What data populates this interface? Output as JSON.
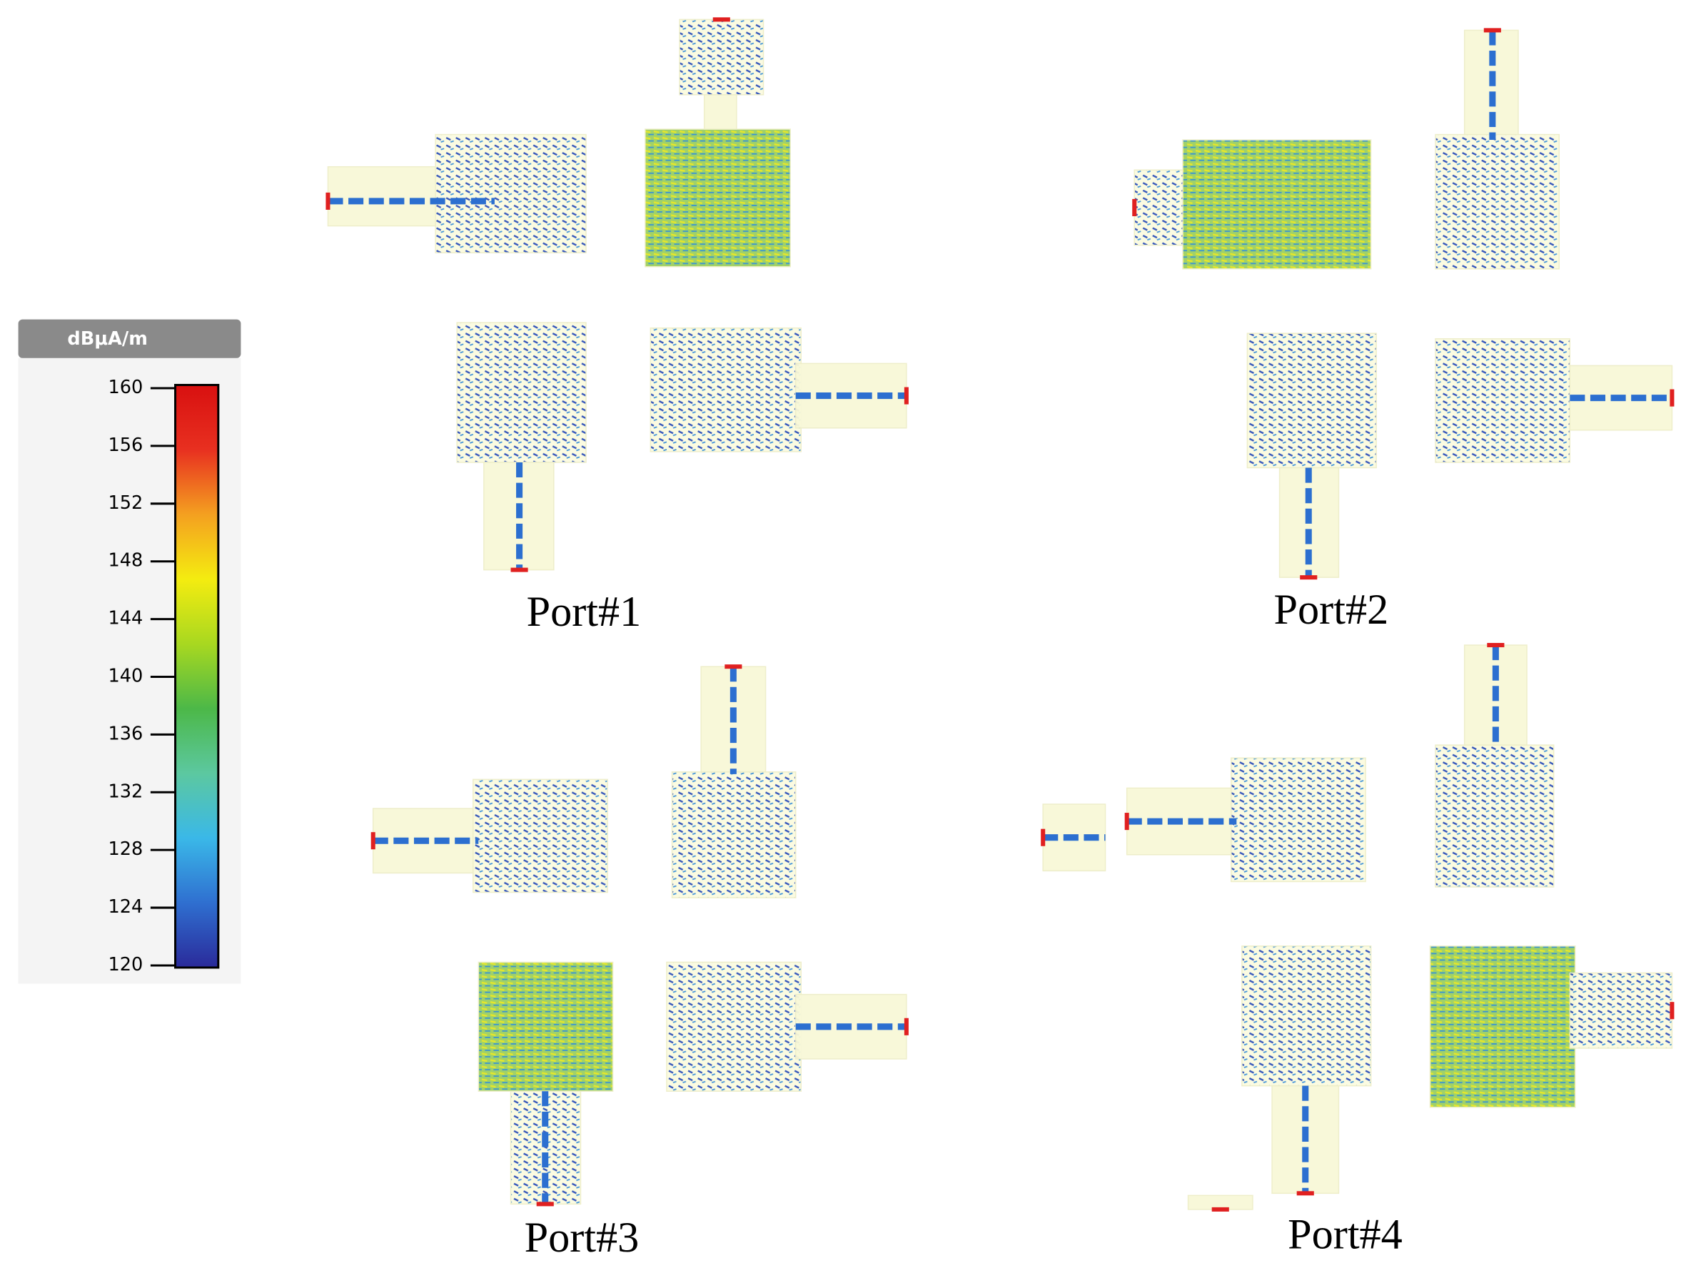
{
  "colorbar": {
    "unit": "dBμA/m",
    "range": [
      120,
      160
    ],
    "ticks": [
      160,
      156,
      152,
      148,
      144,
      140,
      136,
      132,
      128,
      124,
      120
    ],
    "colormap": [
      "#2a2a9a",
      "#2f6fd0",
      "#3ab8e8",
      "#5cc8a0",
      "#4cb848",
      "#a8d820",
      "#f4ec10",
      "#f4a020",
      "#e83020",
      "#d81010"
    ]
  },
  "panels": [
    {
      "label": "Port#1"
    },
    {
      "label": "Port#2"
    },
    {
      "label": "Port#3"
    },
    {
      "label": "Port#4"
    }
  ]
}
